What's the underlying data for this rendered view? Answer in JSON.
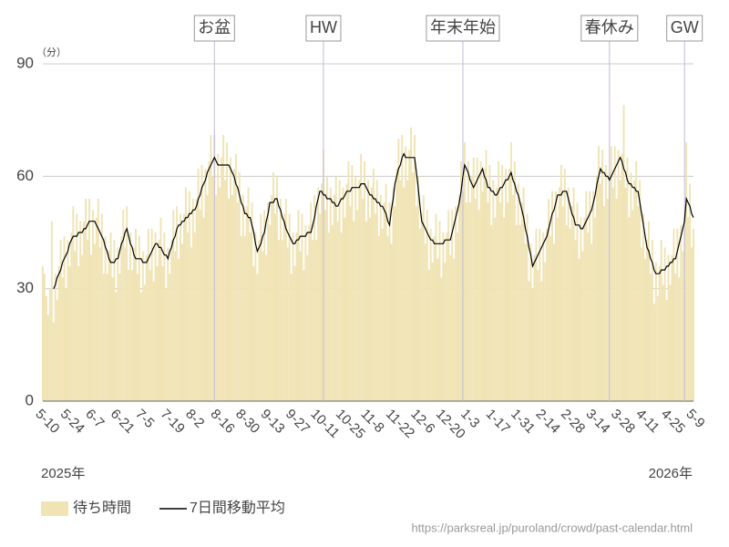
{
  "chart_data": {
    "type": "bar",
    "y_unit": "（分）",
    "years": [
      "2025年",
      "2026年"
    ],
    "source": "https://parksreal.jp/puroland/crowd/past-calendar.html",
    "ylim": [
      0,
      90
    ],
    "yticks": [
      0,
      30,
      60,
      90
    ],
    "grid": true,
    "categories": [
      "5-10",
      null,
      null,
      null,
      null,
      null,
      null,
      null,
      null,
      null,
      null,
      null,
      null,
      null,
      "5-24",
      null,
      null,
      null,
      null,
      null,
      null,
      null,
      null,
      null,
      null,
      null,
      null,
      null,
      "6-7",
      null,
      null,
      null,
      null,
      null,
      null,
      null,
      null,
      null,
      null,
      null,
      null,
      null,
      "6-21",
      null,
      null,
      null,
      null,
      null,
      null,
      null,
      null,
      null,
      null,
      null,
      null,
      null,
      "7-5",
      null,
      null,
      null,
      null,
      null,
      null,
      null,
      null,
      null,
      null,
      null,
      null,
      null,
      "7-19",
      null,
      null,
      null,
      null,
      null,
      null,
      null,
      null,
      null,
      null,
      null,
      null,
      null,
      "8-2",
      null,
      null,
      null,
      null,
      null,
      null,
      null,
      null,
      null,
      null,
      null,
      null,
      null,
      "8-16",
      null,
      null,
      null,
      null,
      null,
      null,
      null,
      null,
      null,
      null,
      null,
      null,
      null,
      "8-30",
      null,
      null,
      null,
      null,
      null,
      null,
      null,
      null,
      null,
      null,
      null,
      null,
      null,
      "9-13",
      null,
      null,
      null,
      null,
      null,
      null,
      null,
      null,
      null,
      null,
      null,
      null,
      null,
      "9-27",
      null,
      null,
      null,
      null,
      null,
      null,
      null,
      null,
      null,
      null,
      null,
      null,
      null,
      "10-11",
      null,
      null,
      null,
      null,
      null,
      null,
      null,
      null,
      null,
      null,
      null,
      null,
      null,
      "10-25",
      null,
      null,
      null,
      null,
      null,
      null,
      null,
      null,
      null,
      null,
      null,
      null,
      null,
      "11-8",
      null,
      null,
      null,
      null,
      null,
      null,
      null,
      null,
      null,
      null,
      null,
      null,
      null,
      "11-22",
      null,
      null,
      null,
      null,
      null,
      null,
      null,
      null,
      null,
      null,
      null,
      null,
      null,
      "12-6",
      null,
      null,
      null,
      null,
      null,
      null,
      null,
      null,
      null,
      null,
      null,
      null,
      null,
      "12-20",
      null,
      null,
      null,
      null,
      null,
      null,
      null,
      null,
      null,
      null,
      null,
      null,
      null,
      "1-3",
      null,
      null,
      null,
      null,
      null,
      null,
      null,
      null,
      null,
      null,
      null,
      null,
      null,
      "1-17",
      null,
      null,
      null,
      null,
      null,
      null,
      null,
      null,
      null,
      null,
      null,
      null,
      null,
      "1-31",
      null,
      null,
      null,
      null,
      null,
      null,
      null,
      null,
      null,
      null,
      null,
      null,
      null,
      "2-14",
      null,
      null,
      null,
      null,
      null,
      null,
      null,
      null,
      null,
      null,
      null,
      null,
      null,
      "2-28",
      null,
      null,
      null,
      null,
      null,
      null,
      null,
      null,
      null,
      null,
      null,
      null,
      null,
      "3-14",
      null,
      null,
      null,
      null,
      null,
      null,
      null,
      null,
      null,
      null,
      null,
      null,
      null,
      "3-28",
      null,
      null,
      null,
      null,
      null,
      null,
      null,
      null,
      null,
      null,
      null,
      null,
      null,
      "4-11",
      null,
      null,
      null,
      null,
      null,
      null,
      null,
      null,
      null,
      null,
      null,
      null,
      null,
      "4-25",
      null,
      null,
      null,
      null,
      null,
      null,
      null,
      null,
      null,
      null,
      null,
      null,
      null,
      "5-9"
    ],
    "series": [
      {
        "name": "待ち時間",
        "type": "bar",
        "color": "#f0e4b5",
        "values": [
          36,
          34,
          28,
          23,
          30,
          48,
          21,
          34,
          27,
          36,
          43,
          33,
          44,
          30,
          43,
          36,
          45,
          52,
          40,
          50,
          36,
          48,
          39,
          48,
          54,
          43,
          54,
          39,
          51,
          42,
          49,
          54,
          41,
          50,
          34,
          44,
          34,
          40,
          45,
          33,
          43,
          29,
          41,
          34,
          44,
          51,
          41,
          52,
          35,
          45,
          35,
          41,
          46,
          34,
          44,
          29,
          40,
          31,
          39,
          46,
          35,
          46,
          32,
          45,
          36,
          43,
          49,
          36,
          45,
          30,
          41,
          34,
          43,
          51,
          40,
          52,
          38,
          50,
          42,
          50,
          57,
          45,
          56,
          41,
          54,
          45,
          54,
          62,
          51,
          63,
          49,
          62,
          55,
          64,
          71,
          60,
          71,
          55,
          66,
          57,
          65,
          71,
          59,
          69,
          54,
          65,
          55,
          62,
          66,
          53,
          61,
          44,
          55,
          44,
          52,
          57,
          45,
          53,
          36,
          45,
          34,
          43,
          50,
          40,
          51,
          39,
          53,
          47,
          55,
          61,
          50,
          60,
          43,
          54,
          43,
          50,
          54,
          41,
          50,
          34,
          45,
          36,
          45,
          51,
          40,
          50,
          35,
          47,
          39,
          47,
          53,
          43,
          55,
          43,
          57,
          50,
          58,
          67,
          51,
          60,
          45,
          57,
          47,
          55,
          60,
          48,
          59,
          45,
          57,
          49,
          58,
          64,
          52,
          63,
          48,
          60,
          51,
          59,
          66,
          54,
          64,
          48,
          59,
          49,
          57,
          62,
          50,
          59,
          44,
          55,
          46,
          53,
          58,
          44,
          53,
          42,
          57,
          52,
          62,
          70,
          59,
          71,
          57,
          68,
          59,
          67,
          73,
          61,
          71,
          52,
          60,
          46,
          50,
          55,
          42,
          51,
          35,
          46,
          37,
          44,
          50,
          38,
          48,
          33,
          45,
          37,
          45,
          51,
          39,
          51,
          38,
          52,
          45,
          55,
          64,
          56,
          69,
          53,
          64,
          53,
          60,
          65,
          54,
          65,
          51,
          64,
          56,
          62,
          67,
          53,
          63,
          47,
          59,
          49,
          57,
          64,
          53,
          63,
          49,
          62,
          53,
          62,
          69,
          55,
          64,
          47,
          58,
          47,
          53,
          57,
          42,
          50,
          32,
          42,
          30,
          39,
          46,
          35,
          46,
          32,
          45,
          37,
          46,
          54,
          44,
          56,
          42,
          56,
          49,
          57,
          63,
          52,
          62,
          47,
          57,
          46,
          52,
          57,
          43,
          53,
          38,
          49,
          40,
          49,
          56,
          45,
          56,
          42,
          56,
          49,
          60,
          68,
          58,
          67,
          52,
          63,
          54,
          61,
          68,
          57,
          68,
          54,
          67,
          59,
          66,
          79,
          57,
          65,
          49,
          61,
          51,
          59,
          64,
          52,
          59,
          41,
          50,
          38,
          43,
          48,
          34,
          43,
          26,
          37,
          28,
          36,
          43,
          31,
          41,
          27,
          39,
          31,
          39,
          46,
          34,
          46,
          33,
          47,
          40,
          50,
          69,
          49,
          58,
          41,
          46
        ]
      },
      {
        "name": "7日間移動平均",
        "type": "line",
        "color": "#000000",
        "values": [
          null,
          null,
          null,
          null,
          null,
          null,
          30,
          31,
          33,
          34,
          35,
          37,
          38,
          39,
          40,
          42,
          43,
          44,
          44,
          44,
          45,
          45,
          45,
          46,
          46,
          47,
          48,
          48,
          48,
          48,
          47,
          46,
          45,
          44,
          43,
          41,
          40,
          38,
          37,
          37,
          37,
          38,
          38,
          40,
          42,
          43,
          45,
          46,
          44,
          42,
          41,
          39,
          38,
          38,
          38,
          38,
          37,
          37,
          37,
          38,
          39,
          40,
          41,
          42,
          42,
          41,
          41,
          40,
          39,
          39,
          38,
          40,
          41,
          43,
          44,
          46,
          47,
          47,
          48,
          48,
          49,
          49,
          50,
          50,
          51,
          51,
          52,
          54,
          55,
          57,
          58,
          59,
          61,
          62,
          63,
          64,
          65,
          64,
          63,
          63,
          63,
          63,
          63,
          63,
          63,
          62,
          61,
          60,
          58,
          57,
          55,
          53,
          52,
          50,
          50,
          49,
          49,
          47,
          45,
          42,
          40,
          41,
          42,
          44,
          45,
          48,
          50,
          53,
          53,
          53,
          54,
          54,
          52,
          51,
          49,
          48,
          46,
          45,
          44,
          43,
          42,
          42,
          43,
          43,
          44,
          44,
          44,
          44,
          45,
          45,
          45,
          47,
          49,
          52,
          54,
          56,
          56,
          55,
          55,
          54,
          54,
          54,
          53,
          53,
          52,
          52,
          53,
          54,
          54,
          55,
          56,
          56,
          56,
          57,
          57,
          57,
          57,
          57,
          58,
          58,
          58,
          57,
          56,
          55,
          55,
          54,
          54,
          53,
          53,
          52,
          52,
          51,
          50,
          48,
          47,
          51,
          54,
          58,
          60,
          62,
          63,
          65,
          66,
          65,
          65,
          65,
          65,
          65,
          65,
          61,
          57,
          52,
          48,
          47,
          46,
          45,
          44,
          43,
          43,
          42,
          42,
          42,
          42,
          42,
          42,
          43,
          43,
          43,
          43,
          45,
          47,
          49,
          51,
          53,
          56,
          60,
          63,
          62,
          61,
          59,
          58,
          57,
          58,
          59,
          60,
          61,
          62,
          60,
          59,
          57,
          57,
          56,
          56,
          55,
          55,
          56,
          57,
          57,
          58,
          59,
          59,
          60,
          61,
          59,
          58,
          56,
          55,
          53,
          51,
          49,
          46,
          44,
          41,
          39,
          36,
          37,
          38,
          39,
          40,
          41,
          42,
          43,
          44,
          46,
          48,
          50,
          51,
          53,
          55,
          55,
          55,
          56,
          56,
          56,
          54,
          52,
          50,
          49,
          47,
          47,
          47,
          46,
          46,
          47,
          48,
          49,
          50,
          51,
          53,
          55,
          58,
          60,
          62,
          61,
          61,
          60,
          60,
          59,
          60,
          61,
          62,
          63,
          64,
          65,
          64,
          62,
          61,
          59,
          58,
          58,
          57,
          57,
          56,
          56,
          53,
          50,
          47,
          44,
          41,
          40,
          38,
          37,
          35,
          34,
          34,
          34,
          35,
          35,
          35,
          36,
          36,
          37,
          37,
          38,
          38,
          40,
          42,
          44,
          46,
          48,
          54,
          53,
          52,
          50,
          49
        ]
      }
    ],
    "annotations": [
      {
        "label": "お盆",
        "x": 96
      },
      {
        "label": "HW",
        "x": 157
      },
      {
        "label": "年末年始",
        "x": 235
      },
      {
        "label": "春休み",
        "x": 317
      },
      {
        "label": "GW",
        "x": 359
      }
    ]
  }
}
